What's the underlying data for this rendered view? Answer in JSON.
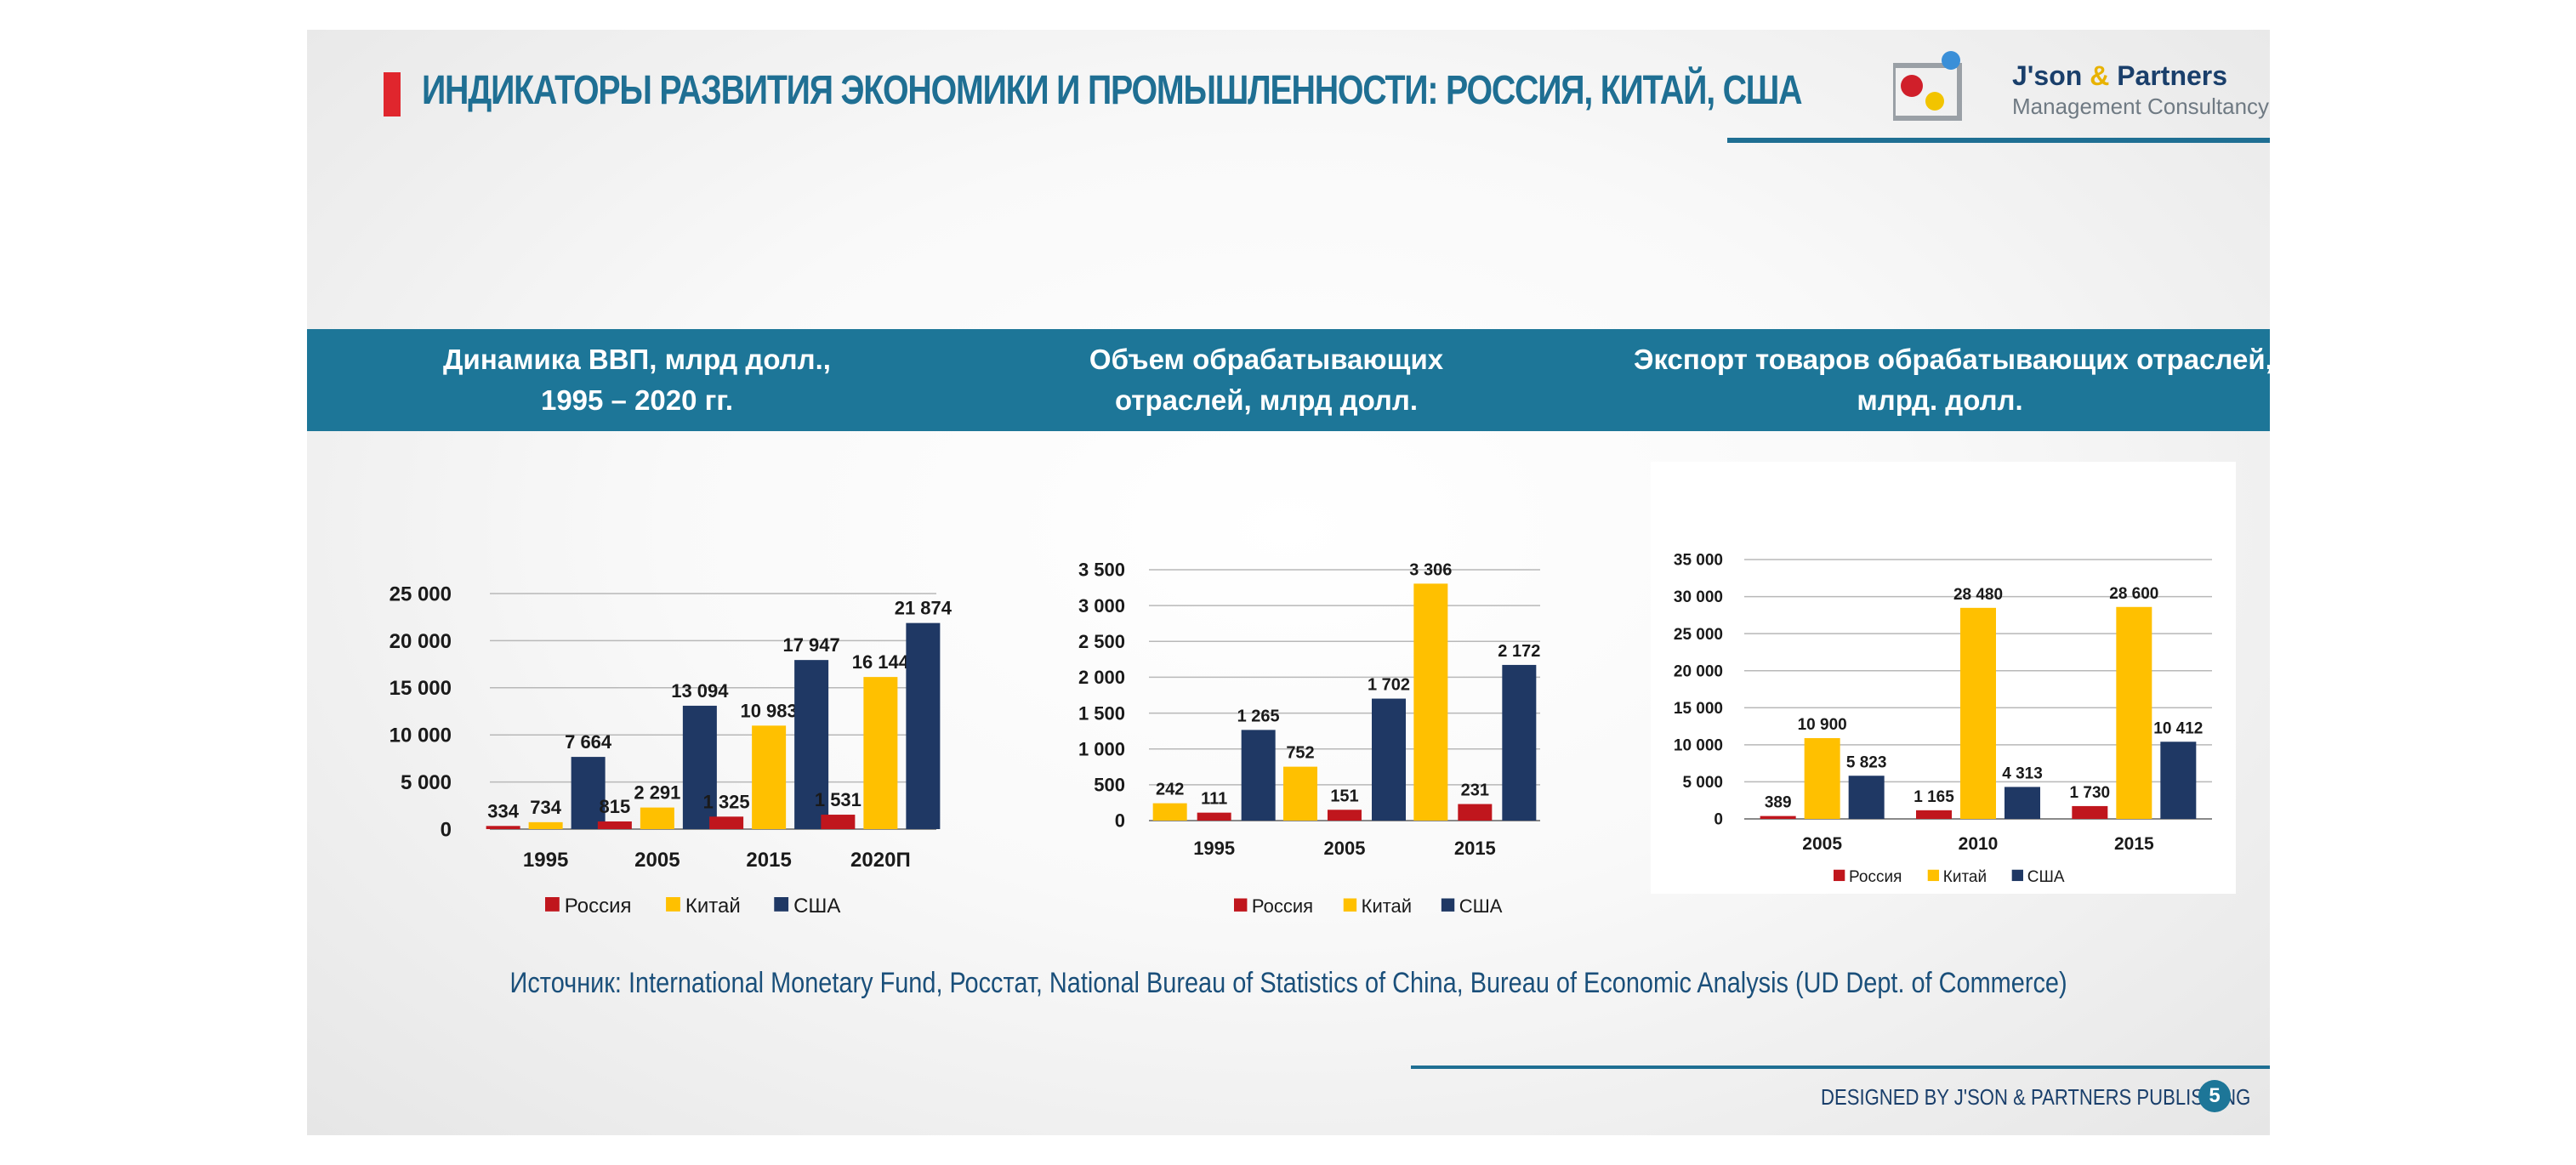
{
  "header": {
    "title": "ИНДИКАТОРЫ РАЗВИТИЯ ЭКОНОМИКИ И ПРОМЫШЛЕННОСТИ: РОССИЯ, КИТАЙ, США",
    "brand_name_a": "J'son ",
    "brand_name_amp": "&",
    "brand_name_b": " Partners",
    "brand_sub": "Management Consultancy"
  },
  "band": {
    "h1_line1": "Динамика ВВП, млрд долл.,",
    "h1_line2": "1995 – 2020 гг.",
    "h2_line1": "Объем обрабатывающих",
    "h2_line2": "отраслей, млрд долл.",
    "h3_line1": "Экспорт товаров обрабатывающих отраслей,",
    "h3_line2": "млрд. долл."
  },
  "colors": {
    "russia": "#c0161d",
    "china": "#ffc000",
    "usa": "#1f3864"
  },
  "chart_data": [
    {
      "type": "bar",
      "title": "Динамика ВВП, млрд долл., 1995 – 2020 гг.",
      "categories": [
        "1995",
        "2005",
        "2015",
        "2020П"
      ],
      "series": [
        {
          "name": "Россия",
          "values": [
            334,
            815,
            1325,
            1531
          ],
          "labels": [
            "334",
            "815",
            "1 325",
            "1 531"
          ]
        },
        {
          "name": "Китай",
          "values": [
            734,
            2291,
            10983,
            16144
          ],
          "labels": [
            "734",
            "2 291",
            "10 983",
            "16 144"
          ]
        },
        {
          "name": "США",
          "values": [
            7664,
            13094,
            17947,
            21874
          ],
          "labels": [
            "7 664",
            "13 094",
            "17 947",
            "21 874"
          ]
        }
      ],
      "ylim": [
        0,
        25000
      ],
      "yticks": [
        0,
        5000,
        10000,
        15000,
        20000,
        25000
      ],
      "ytick_labels": [
        "0",
        "5 000",
        "10 000",
        "15 000",
        "20 000",
        "25 000"
      ],
      "legend": [
        "Россия",
        "Китай",
        "США"
      ]
    },
    {
      "type": "bar",
      "title": "Объем обрабатывающих отраслей, млрд долл.",
      "categories": [
        "1995",
        "2005",
        "2015"
      ],
      "series": [
        {
          "name": "Китай",
          "values": [
            242,
            752,
            3306
          ],
          "labels": [
            "242",
            "752",
            "3 306"
          ]
        },
        {
          "name": "Россия",
          "values": [
            111,
            151,
            231
          ],
          "labels": [
            "111",
            "151",
            "231"
          ]
        },
        {
          "name": "США",
          "values": [
            1265,
            1702,
            2172
          ],
          "labels": [
            "1 265",
            "1 702",
            "2 172"
          ]
        }
      ],
      "ylim": [
        0,
        3500
      ],
      "yticks": [
        0,
        500,
        1000,
        1500,
        2000,
        2500,
        3000,
        3500
      ],
      "ytick_labels": [
        "0",
        "500",
        "1 000",
        "1 500",
        "2 000",
        "2 500",
        "3 000",
        "3 500"
      ],
      "legend": [
        "Россия",
        "Китай",
        "США"
      ]
    },
    {
      "type": "bar",
      "title": "Экспорт товаров обрабатывающих отраслей, млрд. долл.",
      "categories": [
        "2005",
        "2010",
        "2015"
      ],
      "series": [
        {
          "name": "Россия",
          "values": [
            389,
            1165,
            1730
          ],
          "labels": [
            "389",
            "1 165",
            "1 730"
          ]
        },
        {
          "name": "Китай",
          "values": [
            10900,
            28480,
            28600
          ],
          "labels": [
            "10 900",
            "28 480",
            "28 600"
          ]
        },
        {
          "name": "США",
          "values": [
            5823,
            4313,
            10412
          ],
          "labels": [
            "5 823",
            "4 313",
            "10 412"
          ]
        }
      ],
      "ylim": [
        0,
        35000
      ],
      "yticks": [
        0,
        5000,
        10000,
        15000,
        20000,
        25000,
        30000,
        35000
      ],
      "ytick_labels": [
        "0",
        "5 000",
        "10 000",
        "15 000",
        "20 000",
        "25 000",
        "30 000",
        "35 000"
      ],
      "legend": [
        "Россия",
        "Китай",
        "США"
      ]
    }
  ],
  "source": "Источник:  International Monetary Fund, Росстат, National Bureau of Statistics of China, Bureau of Economic Analysis (UD Dept. of Commerce)",
  "footer": {
    "text": "DESIGNED BY J'SON & PARTNERS PUBLISHING",
    "page": "5"
  }
}
